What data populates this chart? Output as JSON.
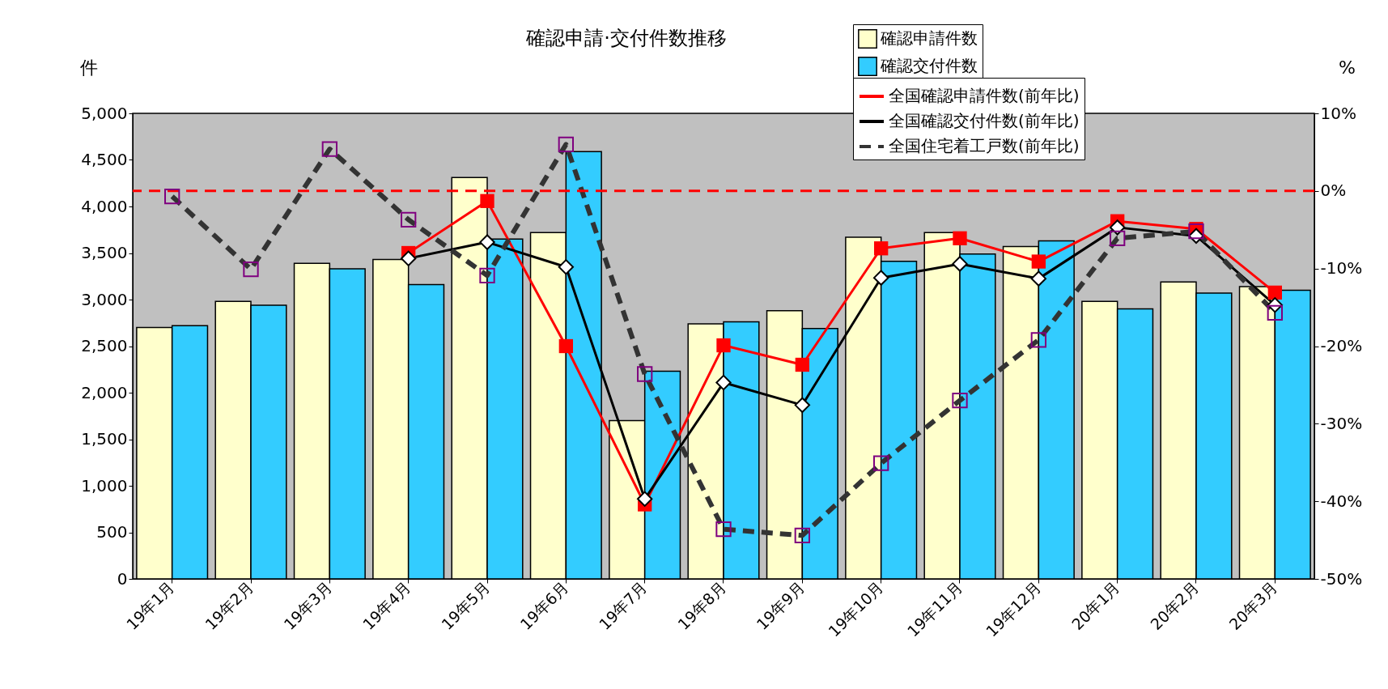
{
  "chart_data": {
    "type": "bar",
    "title": "確認申請·交付件数推移",
    "ylabel": "件",
    "y2label": "%",
    "categories": [
      "19年1月",
      "19年2月",
      "19年3月",
      "19年4月",
      "19年5月",
      "19年6月",
      "19年7月",
      "19年8月",
      "19年9月",
      "19年10月",
      "19年11月",
      "19年12月",
      "20年1月",
      "20年2月",
      "20年3月"
    ],
    "series": [
      {
        "name": "確認申請件数",
        "color": "#ffffcc",
        "values": [
          2700,
          2980,
          3390,
          3430,
          4310,
          3720,
          1700,
          2740,
          2880,
          3670,
          3720,
          3570,
          2980,
          3190,
          3140
        ]
      },
      {
        "name": "確認交付件数",
        "color": "#33ccff",
        "values": [
          2720,
          2940,
          3330,
          3160,
          3650,
          4590,
          2230,
          2760,
          2690,
          3410,
          3490,
          3630,
          2900,
          3070,
          3100
        ]
      },
      {
        "name": "全国確認申請件数(前年比)",
        "type": "line",
        "axis": "y2",
        "color": "#ff0000",
        "marker": "square",
        "line_style": "solid",
        "values": [
          null,
          null,
          null,
          -8,
          -1.3,
          -20,
          -40.4,
          -19.9,
          -22.4,
          -7.4,
          -6.1,
          -9.1,
          -3.9,
          -4.9,
          -13.1
        ]
      },
      {
        "name": "全国確認交付件数(前年比)",
        "type": "line",
        "axis": "y2",
        "color": "#000000",
        "marker": "diamond",
        "line_style": "solid",
        "values": [
          null,
          null,
          null,
          -8.7,
          -6.6,
          -9.8,
          -39.7,
          -24.7,
          -27.6,
          -11.2,
          -9.4,
          -11.3,
          -4.7,
          -5.8,
          -14.7
        ]
      },
      {
        "name": "全国住宅着工戸数(前年比)",
        "type": "line",
        "axis": "y2",
        "color": "#333333",
        "marker": "square",
        "line_style": "dashed",
        "values": [
          -0.7,
          -10.1,
          5.4,
          -3.7,
          -10.9,
          6,
          -23.6,
          -43.6,
          -44.4,
          -35.1,
          -27,
          -19.2,
          -6.1,
          -5.2,
          -15.7
        ]
      }
    ],
    "ylim": [
      0,
      5000
    ],
    "yticks": [
      0,
      500,
      {
        "value": 1000,
        "label": "1,000"
      },
      {
        "value": 1500,
        "label": "1,500"
      },
      {
        "value": 2000,
        "label": "2,000"
      },
      {
        "value": 2500,
        "label": "2,500"
      },
      {
        "value": 3000,
        "label": "3,000"
      },
      {
        "value": 3500,
        "label": "3,500"
      },
      {
        "value": 4000,
        "label": "4,000"
      },
      {
        "value": 4500,
        "label": "4,500"
      },
      {
        "value": 5000,
        "label": "5,000"
      }
    ],
    "y2lim": [
      -50,
      10
    ],
    "y2ticks": [
      {
        "value": -50,
        "label": "-50%"
      },
      {
        "value": -40,
        "label": "-40%"
      },
      {
        "value": -30,
        "label": "-30%"
      },
      {
        "value": -20,
        "label": "-20%"
      },
      {
        "value": -10,
        "label": "-10%"
      },
      {
        "value": 0,
        "label": "0%"
      },
      {
        "value": 10,
        "label": "10%"
      }
    ],
    "ref_lines": [
      {
        "axis": "y2",
        "value": 0,
        "color": "#ff0000",
        "line_style": "dashed"
      }
    ],
    "grid": false,
    "legend": "top right"
  }
}
